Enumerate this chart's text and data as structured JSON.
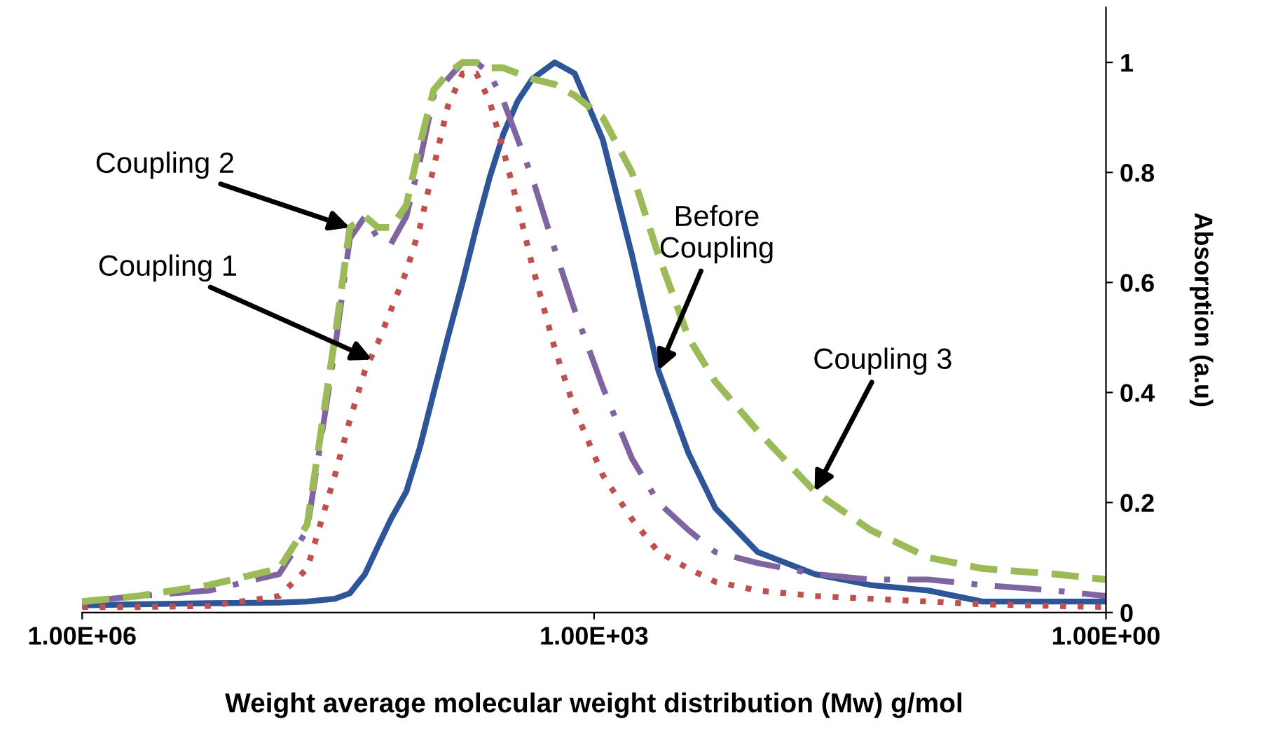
{
  "chart_data": {
    "type": "line",
    "xlabel": "Weight average molecular weight distribution (Mw) g/mol",
    "ylabel": "Absorption (a.u)",
    "x": [
      1000000,
      470000,
      180000,
      70000,
      48000,
      33000,
      27000,
      22000,
      18500,
      15500,
      12600,
      10500,
      8700,
      7200,
      5900,
      4900,
      4100,
      3400,
      2800,
      2300,
      1700,
      1300,
      890,
      600,
      420,
      280,
      195,
      110,
      51,
      24,
      11,
      5.3,
      2.0,
      1
    ],
    "series": [
      {
        "color": "#2e5597",
        "line_style": "solid",
        "values": [
          0.013,
          0.015,
          0.017,
          0.018,
          0.02,
          0.025,
          0.035,
          0.07,
          0.12,
          0.17,
          0.22,
          0.3,
          0.4,
          0.5,
          0.6,
          0.7,
          0.79,
          0.87,
          0.93,
          0.97,
          1.0,
          0.98,
          0.86,
          0.65,
          0.44,
          0.29,
          0.19,
          0.11,
          0.07,
          0.05,
          0.04,
          0.02,
          0.02,
          0.02
        ]
      },
      {
        "color": "#c0504d",
        "line_style": "dotted",
        "values": [
          0.01,
          0.01,
          0.012,
          0.03,
          0.08,
          0.25,
          0.35,
          0.44,
          0.49,
          0.55,
          0.62,
          0.7,
          0.81,
          0.92,
          0.98,
          0.98,
          0.93,
          0.84,
          0.74,
          0.63,
          0.48,
          0.37,
          0.25,
          0.17,
          0.11,
          0.08,
          0.056,
          0.04,
          0.03,
          0.025,
          0.02,
          0.015,
          0.012,
          0.01
        ]
      },
      {
        "color": "#8064a2",
        "line_style": "dashdot",
        "values": [
          0.02,
          0.03,
          0.04,
          0.07,
          0.15,
          0.48,
          0.68,
          0.72,
          0.68,
          0.67,
          0.72,
          0.82,
          0.94,
          0.97,
          1.0,
          1.0,
          0.98,
          0.93,
          0.86,
          0.79,
          0.66,
          0.55,
          0.41,
          0.28,
          0.2,
          0.15,
          0.11,
          0.09,
          0.07,
          0.06,
          0.06,
          0.05,
          0.04,
          0.03
        ]
      },
      {
        "color": "#9bbb59",
        "line_style": "dashed",
        "values": [
          0.02,
          0.03,
          0.05,
          0.08,
          0.16,
          0.5,
          0.7,
          0.72,
          0.7,
          0.7,
          0.74,
          0.85,
          0.95,
          0.98,
          1.0,
          1.0,
          0.99,
          0.99,
          0.98,
          0.97,
          0.96,
          0.94,
          0.9,
          0.8,
          0.65,
          0.5,
          0.42,
          0.33,
          0.22,
          0.15,
          0.1,
          0.08,
          0.07,
          0.06
        ]
      }
    ],
    "annotations": [
      {
        "text": "Coupling 2",
        "x": 27000,
        "y": 0.7
      },
      {
        "text": "Coupling 1",
        "x": 20000,
        "y": 0.46
      },
      {
        "text": "Before\nCoupling",
        "x": 420,
        "y": 0.44
      },
      {
        "text": "Coupling 3",
        "x": 51,
        "y": 0.22
      }
    ],
    "log": "x",
    "xlim": [
      1000000,
      1
    ],
    "xticks": [
      {
        "value": 1000000,
        "label": "1.00E+06"
      },
      {
        "value": 1000,
        "label": "1.00E+03"
      },
      {
        "value": 1,
        "label": "1.00E+00"
      }
    ],
    "ylim": [
      0,
      1.1
    ],
    "yticks": [
      0,
      0.2,
      0.4,
      0.6,
      0.8,
      1
    ],
    "grid": false,
    "legend": false
  }
}
